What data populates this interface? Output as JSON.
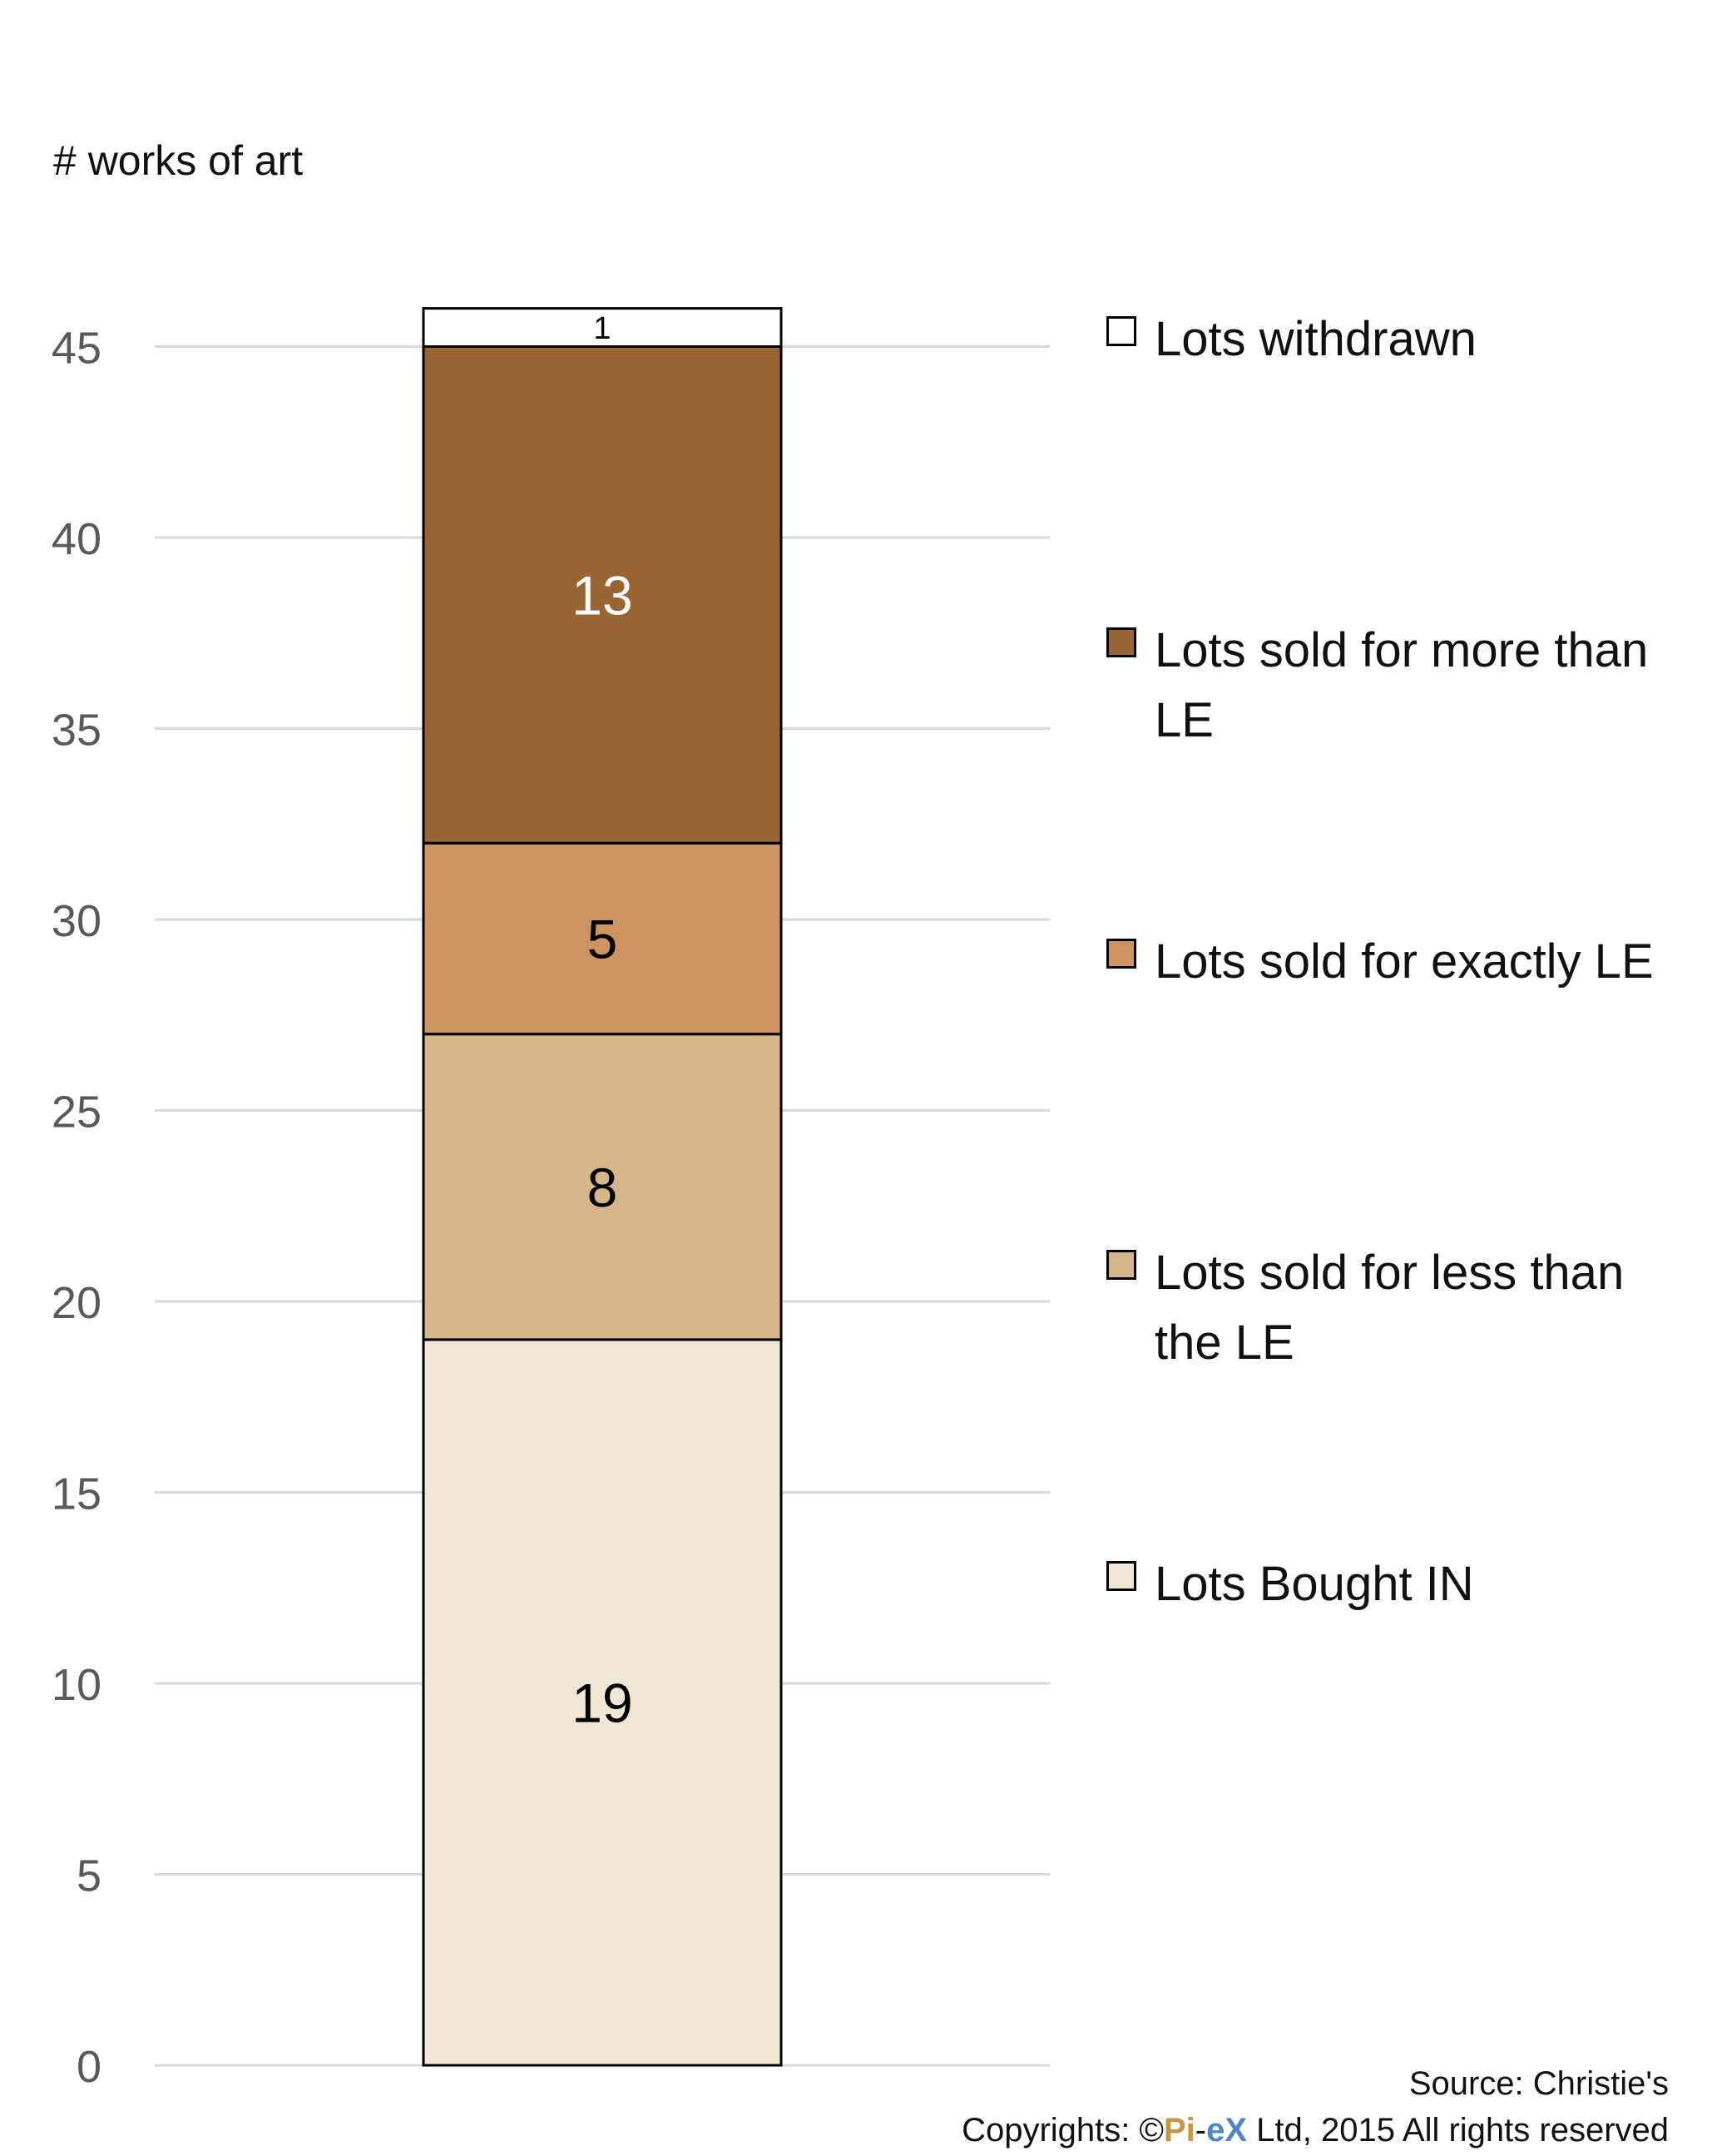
{
  "chart_data": {
    "type": "bar",
    "stacked": true,
    "ylabel": "# works of art",
    "ylim": [
      0,
      45
    ],
    "yticks": [
      0,
      5,
      10,
      15,
      20,
      25,
      30,
      35,
      40,
      45
    ],
    "grid": true,
    "legend_position": "right",
    "categories": [
      ""
    ],
    "series": [
      {
        "name": "Lots Bought IN",
        "values": [
          19
        ],
        "color": "#efe6d6",
        "label_color": "#000000"
      },
      {
        "name": "Lots sold for less than the LE",
        "values": [
          8
        ],
        "color": "#d4b689",
        "label_color": "#000000"
      },
      {
        "name": "Lots sold for exactly LE",
        "values": [
          5
        ],
        "color": "#cd9461",
        "label_color": "#000000"
      },
      {
        "name": "Lots sold for more than LE",
        "values": [
          13
        ],
        "color": "#996533",
        "label_color": "#ffffff"
      },
      {
        "name": "Lots withdrawn",
        "values": [
          1
        ],
        "color": "#ffffff",
        "label_color": "#000000"
      }
    ]
  },
  "footer": {
    "source": "Source: Christie's",
    "copyright_prefix": "Copyrights: ©",
    "brand_pi": "Pi",
    "brand_dash": "-",
    "brand_ex": "eX",
    "copyright_suffix": " Ltd, 2015 All rights reserved"
  }
}
